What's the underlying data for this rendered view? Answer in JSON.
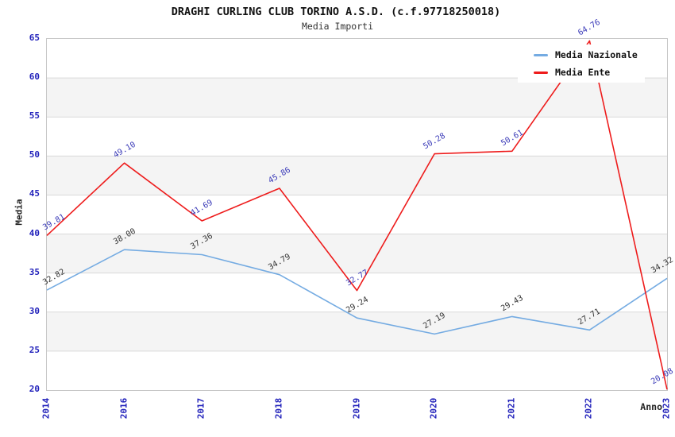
{
  "chart_data": {
    "type": "line",
    "title": "DRAGHI CURLING CLUB TORINO A.S.D. (c.f.97718250018)",
    "subtitle": "Media Importi",
    "xlabel": "Anno",
    "ylabel": "Media",
    "categories": [
      "2014",
      "2016",
      "2017",
      "2018",
      "2019",
      "2020",
      "2021",
      "2022",
      "2023"
    ],
    "ylim": [
      20,
      65
    ],
    "ytick_step": 5,
    "grid": "horizontal gridlines with alternating shaded bands",
    "legend_position": "top-right",
    "series": [
      {
        "name": "Media Nazionale",
        "color": "#74abe2",
        "label_color": "#333333",
        "values": [
          32.82,
          38.0,
          37.36,
          34.79,
          29.24,
          27.19,
          29.43,
          27.71,
          34.32
        ]
      },
      {
        "name": "Media Ente",
        "color": "#ee1c1c",
        "label_color": "#3a3ab8",
        "values": [
          39.81,
          49.1,
          41.69,
          45.86,
          32.77,
          50.28,
          50.61,
          64.76,
          20.08
        ]
      }
    ]
  },
  "colors": {
    "background": "#ffffff",
    "axis_tick": "#2222bb",
    "title": "#111111",
    "subtitle": "#333333",
    "band_fill": "#f4f4f4",
    "gridline": "#d9d9d9",
    "plot_border": "#c6c6c6"
  }
}
